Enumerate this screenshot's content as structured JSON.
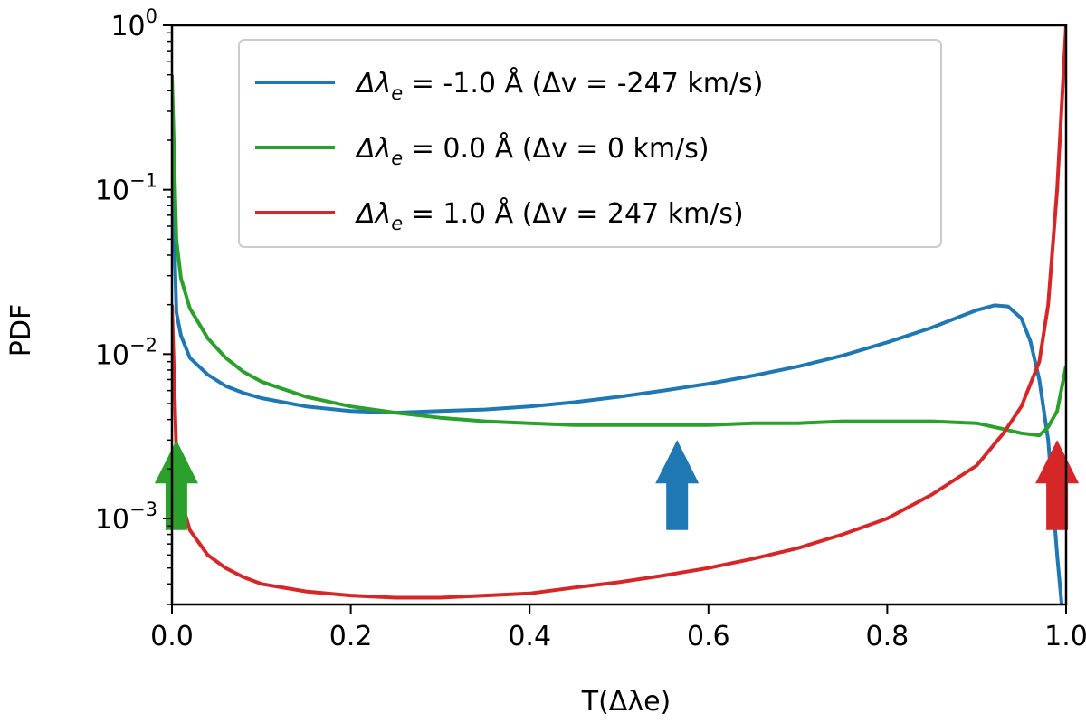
{
  "chart_data": {
    "type": "line",
    "xlabel": "T(Δλe)",
    "ylabel": "PDF",
    "xlim": [
      0.0,
      1.0
    ],
    "ylim": [
      0.0003,
      1.0
    ],
    "yscale": "log",
    "x_ticks": [
      0.0,
      0.2,
      0.4,
      0.6,
      0.8,
      1.0
    ],
    "x_tick_labels": [
      "0.0",
      "0.2",
      "0.4",
      "0.6",
      "0.8",
      "1.0"
    ],
    "y_ticks": [
      {
        "value": 1.0,
        "base": "10",
        "exp": "0"
      },
      {
        "value": 0.1,
        "base": "10",
        "exp": "−1"
      },
      {
        "value": 0.01,
        "base": "10",
        "exp": "−2"
      },
      {
        "value": 0.001,
        "base": "10",
        "exp": "−3"
      }
    ],
    "legend_position": "top-center",
    "series": [
      {
        "name": "Δλe = -1.0 Å (Δv = -247 km/s)",
        "label_symbol": "Δλ",
        "label_sub": "e",
        "label_rest": " = -1.0 Å (Δv = -247 km/s)",
        "color": "#1f77b4",
        "x": [
          0.0,
          0.005,
          0.01,
          0.02,
          0.04,
          0.06,
          0.08,
          0.1,
          0.15,
          0.2,
          0.25,
          0.3,
          0.35,
          0.4,
          0.45,
          0.5,
          0.55,
          0.6,
          0.65,
          0.7,
          0.75,
          0.8,
          0.85,
          0.88,
          0.9,
          0.92,
          0.935,
          0.95,
          0.96,
          0.97,
          0.98,
          0.99,
          0.995
        ],
        "y": [
          0.18,
          0.018,
          0.013,
          0.0095,
          0.0075,
          0.0064,
          0.0058,
          0.0054,
          0.0048,
          0.0045,
          0.0044,
          0.0045,
          0.0046,
          0.0048,
          0.0051,
          0.0055,
          0.006,
          0.0066,
          0.0074,
          0.0084,
          0.0098,
          0.0118,
          0.0145,
          0.0168,
          0.0185,
          0.0198,
          0.0195,
          0.0165,
          0.012,
          0.007,
          0.003,
          0.0006,
          0.0003
        ]
      },
      {
        "name": "Δλe = 0.0 Å (Δv = 0 km/s)",
        "label_symbol": "Δλ",
        "label_sub": "e",
        "label_rest": " = 0.0 Å (Δv = 0 km/s)",
        "color": "#2ca02c",
        "x": [
          0.0,
          0.005,
          0.01,
          0.02,
          0.04,
          0.06,
          0.08,
          0.1,
          0.15,
          0.2,
          0.25,
          0.3,
          0.35,
          0.4,
          0.45,
          0.5,
          0.55,
          0.6,
          0.65,
          0.7,
          0.75,
          0.8,
          0.85,
          0.9,
          0.93,
          0.95,
          0.97,
          0.98,
          0.99,
          1.0
        ],
        "y": [
          0.5,
          0.05,
          0.029,
          0.019,
          0.0125,
          0.0095,
          0.0078,
          0.0068,
          0.0055,
          0.0048,
          0.0044,
          0.0041,
          0.0039,
          0.0038,
          0.0037,
          0.0037,
          0.0037,
          0.0037,
          0.0038,
          0.0038,
          0.0039,
          0.0039,
          0.0039,
          0.0038,
          0.0035,
          0.0033,
          0.0032,
          0.0036,
          0.0045,
          0.0085
        ]
      },
      {
        "name": "Δλe = 1.0 Å (Δv = 247 km/s)",
        "label_symbol": "Δλ",
        "label_sub": "e",
        "label_rest": " = 1.0 Å (Δv = 247 km/s)",
        "color": "#d62728",
        "x": [
          0.0,
          0.005,
          0.01,
          0.02,
          0.04,
          0.06,
          0.08,
          0.1,
          0.15,
          0.2,
          0.25,
          0.3,
          0.35,
          0.4,
          0.45,
          0.5,
          0.55,
          0.6,
          0.65,
          0.7,
          0.75,
          0.8,
          0.85,
          0.9,
          0.93,
          0.95,
          0.97,
          0.98,
          0.99,
          1.0
        ],
        "y": [
          0.02,
          0.0025,
          0.0013,
          0.00085,
          0.0006,
          0.0005,
          0.00044,
          0.0004,
          0.00036,
          0.00034,
          0.00033,
          0.00033,
          0.00034,
          0.00035,
          0.00038,
          0.00041,
          0.00045,
          0.0005,
          0.00057,
          0.00066,
          0.0008,
          0.001,
          0.0014,
          0.0021,
          0.0033,
          0.0048,
          0.009,
          0.02,
          0.1,
          1.0
        ]
      }
    ],
    "annotations": [
      {
        "type": "arrow",
        "direction": "up",
        "color": "#2ca02c",
        "x": 0.005,
        "y_base": 0.00085,
        "y_tip": 0.003
      },
      {
        "type": "arrow",
        "direction": "up",
        "color": "#1f77b4",
        "x": 0.565,
        "y_base": 0.00085,
        "y_tip": 0.003
      },
      {
        "type": "arrow",
        "direction": "up",
        "color": "#d62728",
        "x": 0.99,
        "y_base": 0.00085,
        "y_tip": 0.003
      }
    ]
  }
}
